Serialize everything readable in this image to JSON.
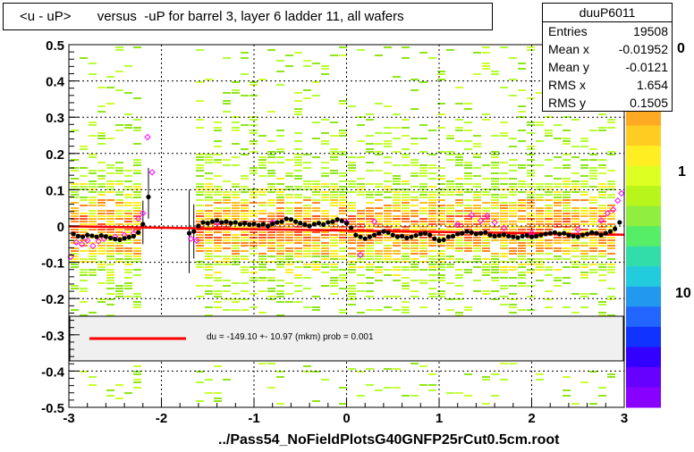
{
  "title": "<u - uP>       versus  -uP for barrel 3, layer 6 ladder 11, all wafers",
  "stats": {
    "name": "duuP6011",
    "rows": [
      {
        "label": "Entries",
        "value": "19508"
      },
      {
        "label": "Mean x",
        "value": "-0.01952"
      },
      {
        "label": "Mean y",
        "value": "-0.0121"
      },
      {
        "label": "RMS x",
        "value": "1.654"
      },
      {
        "label": "RMS y",
        "value": "0.1505"
      }
    ]
  },
  "footer": "../Pass54_NoFieldPlotsG40GNFP25rCut0.5cm.root",
  "fit_text": "du = -149.10 +- 10.97 (mkm) prob = 0.001",
  "colorbar_labels": [
    "0",
    "1",
    "10"
  ],
  "colors": {
    "fit_line": "#ff0000",
    "profile_points": "#000000",
    "open_markers": "#ff00ff",
    "legend_fill": "#f0f0f0"
  },
  "chart_data": {
    "type": "scatter",
    "x_range": [
      -3,
      3
    ],
    "y_range": [
      -0.5,
      0.5
    ],
    "x_ticks": [
      "-3",
      "-2",
      "-1",
      "0",
      "1",
      "2",
      "3"
    ],
    "y_ticks": [
      "-0.5",
      "-0.4",
      "-0.3",
      "-0.2",
      "-0.1",
      "0",
      "0.1",
      "0.2",
      "0.3",
      "0.4",
      "0.5"
    ],
    "grid": true,
    "fit_line": {
      "x": [
        -3,
        3
      ],
      "y": [
        -0.001,
        -0.024
      ]
    },
    "profile_black": [
      {
        "x": -2.95,
        "y": -0.022
      },
      {
        "x": -2.9,
        "y": -0.028
      },
      {
        "x": -2.85,
        "y": -0.03
      },
      {
        "x": -2.8,
        "y": -0.025
      },
      {
        "x": -2.75,
        "y": -0.027
      },
      {
        "x": -2.7,
        "y": -0.03
      },
      {
        "x": -2.65,
        "y": -0.026
      },
      {
        "x": -2.6,
        "y": -0.029
      },
      {
        "x": -2.55,
        "y": -0.033
      },
      {
        "x": -2.5,
        "y": -0.036
      },
      {
        "x": -2.45,
        "y": -0.038
      },
      {
        "x": -2.4,
        "y": -0.034
      },
      {
        "x": -2.35,
        "y": -0.031
      },
      {
        "x": -2.3,
        "y": -0.028
      },
      {
        "x": -2.25,
        "y": -0.018
      },
      {
        "x": -2.2,
        "y": 0.005
      },
      {
        "x": -2.14,
        "y": 0.08
      },
      {
        "x": -1.7,
        "y": -0.02
      },
      {
        "x": -1.65,
        "y": -0.015
      },
      {
        "x": -1.6,
        "y": 0.0
      },
      {
        "x": -1.55,
        "y": 0.01
      },
      {
        "x": -1.5,
        "y": 0.008
      },
      {
        "x": -1.45,
        "y": 0.012
      },
      {
        "x": -1.4,
        "y": 0.015
      },
      {
        "x": -1.35,
        "y": 0.01
      },
      {
        "x": -1.3,
        "y": 0.012
      },
      {
        "x": -1.25,
        "y": 0.008
      },
      {
        "x": -1.2,
        "y": 0.01
      },
      {
        "x": -1.15,
        "y": 0.005
      },
      {
        "x": -1.1,
        "y": 0.008
      },
      {
        "x": -1.05,
        "y": 0.004
      },
      {
        "x": -1.0,
        "y": 0.006
      },
      {
        "x": -0.95,
        "y": 0.002
      },
      {
        "x": -0.9,
        "y": 0.005
      },
      {
        "x": -0.85,
        "y": 0.0
      },
      {
        "x": -0.8,
        "y": 0.006
      },
      {
        "x": -0.75,
        "y": 0.01
      },
      {
        "x": -0.7,
        "y": 0.012
      },
      {
        "x": -0.65,
        "y": 0.02
      },
      {
        "x": -0.6,
        "y": 0.018
      },
      {
        "x": -0.55,
        "y": 0.012
      },
      {
        "x": -0.5,
        "y": 0.008
      },
      {
        "x": -0.45,
        "y": 0.004
      },
      {
        "x": -0.4,
        "y": 0.0
      },
      {
        "x": -0.35,
        "y": 0.005
      },
      {
        "x": -0.3,
        "y": 0.008
      },
      {
        "x": -0.25,
        "y": 0.004
      },
      {
        "x": -0.2,
        "y": 0.01
      },
      {
        "x": -0.15,
        "y": 0.012
      },
      {
        "x": -0.1,
        "y": 0.018
      },
      {
        "x": -0.05,
        "y": 0.014
      },
      {
        "x": 0.0,
        "y": 0.008
      },
      {
        "x": 0.05,
        "y": -0.005
      },
      {
        "x": 0.1,
        "y": -0.025
      },
      {
        "x": 0.15,
        "y": -0.03
      },
      {
        "x": 0.2,
        "y": -0.035
      },
      {
        "x": 0.25,
        "y": -0.03
      },
      {
        "x": 0.3,
        "y": -0.025
      },
      {
        "x": 0.35,
        "y": -0.02
      },
      {
        "x": 0.4,
        "y": -0.015
      },
      {
        "x": 0.45,
        "y": -0.018
      },
      {
        "x": 0.5,
        "y": -0.025
      },
      {
        "x": 0.55,
        "y": -0.03
      },
      {
        "x": 0.6,
        "y": -0.028
      },
      {
        "x": 0.65,
        "y": -0.033
      },
      {
        "x": 0.7,
        "y": -0.03
      },
      {
        "x": 0.75,
        "y": -0.026
      },
      {
        "x": 0.8,
        "y": -0.022
      },
      {
        "x": 0.85,
        "y": -0.02
      },
      {
        "x": 0.9,
        "y": -0.025
      },
      {
        "x": 0.95,
        "y": -0.035
      },
      {
        "x": 1.0,
        "y": -0.04
      },
      {
        "x": 1.05,
        "y": -0.038
      },
      {
        "x": 1.1,
        "y": -0.03
      },
      {
        "x": 1.15,
        "y": -0.028
      },
      {
        "x": 1.2,
        "y": -0.022
      },
      {
        "x": 1.25,
        "y": -0.02
      },
      {
        "x": 1.3,
        "y": -0.015
      },
      {
        "x": 1.35,
        "y": -0.018
      },
      {
        "x": 1.4,
        "y": -0.022
      },
      {
        "x": 1.45,
        "y": -0.02
      },
      {
        "x": 1.5,
        "y": -0.018
      },
      {
        "x": 1.55,
        "y": -0.025
      },
      {
        "x": 1.6,
        "y": -0.028
      },
      {
        "x": 1.65,
        "y": -0.026
      },
      {
        "x": 1.7,
        "y": -0.024
      },
      {
        "x": 1.75,
        "y": -0.028
      },
      {
        "x": 1.8,
        "y": -0.03
      },
      {
        "x": 1.85,
        "y": -0.032
      },
      {
        "x": 1.9,
        "y": -0.028
      },
      {
        "x": 1.95,
        "y": -0.026
      },
      {
        "x": 2.0,
        "y": -0.03
      },
      {
        "x": 2.05,
        "y": -0.028
      },
      {
        "x": 2.1,
        "y": -0.025
      },
      {
        "x": 2.15,
        "y": -0.022
      },
      {
        "x": 2.2,
        "y": -0.02
      },
      {
        "x": 2.25,
        "y": -0.018
      },
      {
        "x": 2.3,
        "y": -0.022
      },
      {
        "x": 2.35,
        "y": -0.02
      },
      {
        "x": 2.4,
        "y": -0.025
      },
      {
        "x": 2.45,
        "y": -0.028
      },
      {
        "x": 2.5,
        "y": -0.03
      },
      {
        "x": 2.55,
        "y": -0.025
      },
      {
        "x": 2.6,
        "y": -0.022
      },
      {
        "x": 2.65,
        "y": -0.018
      },
      {
        "x": 2.7,
        "y": -0.02
      },
      {
        "x": 2.75,
        "y": -0.025
      },
      {
        "x": 2.8,
        "y": -0.02
      },
      {
        "x": 2.85,
        "y": -0.015
      },
      {
        "x": 2.9,
        "y": -0.008
      },
      {
        "x": 2.95,
        "y": 0.01
      }
    ],
    "profile_black_errors": [
      {
        "x": -2.2,
        "lo": -0.05,
        "hi": 0.07
      },
      {
        "x": -2.14,
        "lo": 0.02,
        "hi": 0.16
      },
      {
        "x": -1.7,
        "lo": -0.13,
        "hi": 0.1
      },
      {
        "x": -1.65,
        "lo": -0.09,
        "hi": 0.06
      }
    ],
    "profile_open": [
      {
        "x": -2.98,
        "y": -0.085
      },
      {
        "x": -2.92,
        "y": -0.045
      },
      {
        "x": -2.86,
        "y": -0.05
      },
      {
        "x": -2.8,
        "y": -0.04
      },
      {
        "x": -2.74,
        "y": -0.055
      },
      {
        "x": -2.68,
        "y": -0.042
      },
      {
        "x": -2.62,
        "y": -0.035
      },
      {
        "x": -2.5,
        "y": -0.03
      },
      {
        "x": -2.4,
        "y": -0.025
      },
      {
        "x": -2.3,
        "y": -0.02
      },
      {
        "x": -2.25,
        "y": 0.02
      },
      {
        "x": -2.2,
        "y": 0.035
      },
      {
        "x": -2.15,
        "y": 0.245
      },
      {
        "x": -2.1,
        "y": 0.148
      },
      {
        "x": -1.68,
        "y": -0.035
      },
      {
        "x": -1.62,
        "y": -0.04
      },
      {
        "x": -1.4,
        "y": 0.01
      },
      {
        "x": -0.8,
        "y": 0.01
      },
      {
        "x": 0.0,
        "y": 0.01
      },
      {
        "x": 0.15,
        "y": -0.08
      },
      {
        "x": 0.3,
        "y": 0.012
      },
      {
        "x": 1.2,
        "y": 0.005
      },
      {
        "x": 1.35,
        "y": 0.03
      },
      {
        "x": 1.45,
        "y": 0.015
      },
      {
        "x": 1.52,
        "y": 0.028
      },
      {
        "x": 1.6,
        "y": 0.01
      },
      {
        "x": 1.7,
        "y": -0.005
      },
      {
        "x": 2.0,
        "y": -0.02
      },
      {
        "x": 2.5,
        "y": -0.01
      },
      {
        "x": 2.75,
        "y": 0.015
      },
      {
        "x": 2.82,
        "y": 0.035
      },
      {
        "x": 2.88,
        "y": 0.045
      },
      {
        "x": 2.93,
        "y": 0.07
      },
      {
        "x": 2.97,
        "y": 0.09
      }
    ]
  }
}
